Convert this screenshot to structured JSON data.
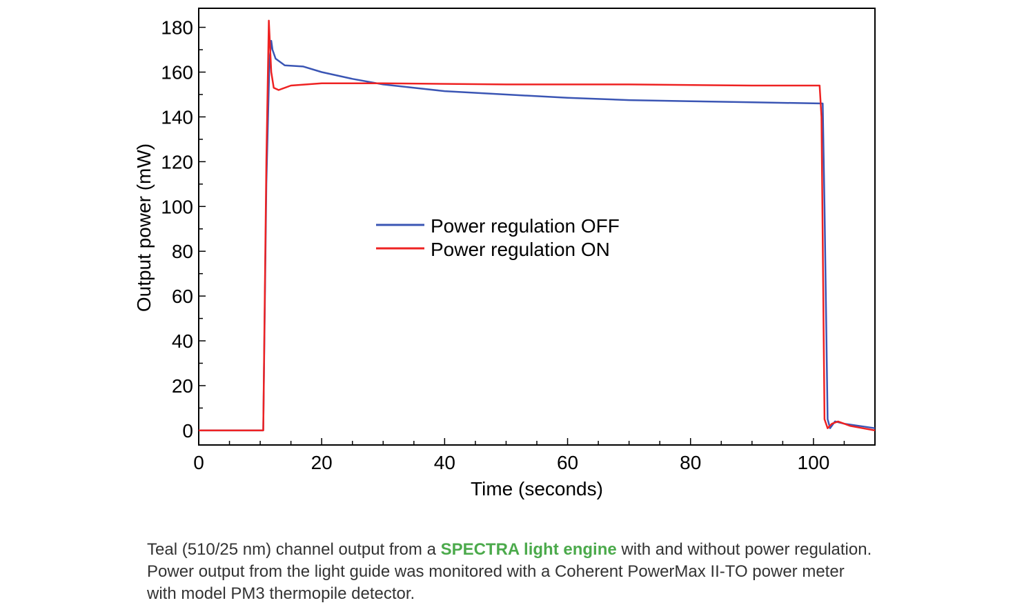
{
  "chart_data": {
    "type": "line",
    "xlabel": "Time (seconds)",
    "ylabel": "Output power (mW)",
    "xlim": [
      0,
      110
    ],
    "ylim": [
      -6.5,
      188.5
    ],
    "xticks": [
      0,
      20,
      40,
      60,
      80,
      100
    ],
    "yticks": [
      0,
      20,
      40,
      60,
      80,
      100,
      120,
      140,
      160,
      180
    ],
    "grid": false,
    "legend": "center",
    "series": [
      {
        "name": "Power regulation OFF",
        "color": "#3a55b4",
        "x": [
          0,
          10.5,
          11,
          11.5,
          11.8,
          12,
          12.5,
          14,
          17,
          20,
          25,
          30,
          40,
          50,
          60,
          70,
          80,
          90,
          101.5,
          101.8,
          102.3,
          102.7,
          103.5,
          105,
          110
        ],
        "y": [
          0,
          0,
          110,
          165,
          174,
          170,
          166,
          163,
          162.5,
          160,
          157,
          154.5,
          151.5,
          150,
          148.5,
          147.5,
          147,
          146.5,
          146,
          100,
          5,
          1,
          4,
          3,
          1
        ]
      },
      {
        "name": "Power regulation ON",
        "color": "#ee2222",
        "x": [
          0,
          10.5,
          11,
          11.4,
          11.8,
          12.2,
          13,
          15,
          20,
          30,
          50,
          70,
          90,
          101,
          101.3,
          101.8,
          102.3,
          103,
          104,
          106,
          108,
          110
        ],
        "y": [
          0,
          0,
          120,
          183,
          160,
          153,
          152,
          154,
          155,
          155,
          154.5,
          154.5,
          154,
          154,
          140,
          5,
          1,
          3,
          4,
          2,
          1,
          0
        ]
      }
    ]
  },
  "caption": {
    "before": "Teal (510/25 nm) channel output from a ",
    "link": "SPECTRA light engine",
    "after": " with and without power regulation. Power output from the light guide was monitored with a Coherent PowerMax II-TO power meter with model PM3 thermopile detector."
  }
}
